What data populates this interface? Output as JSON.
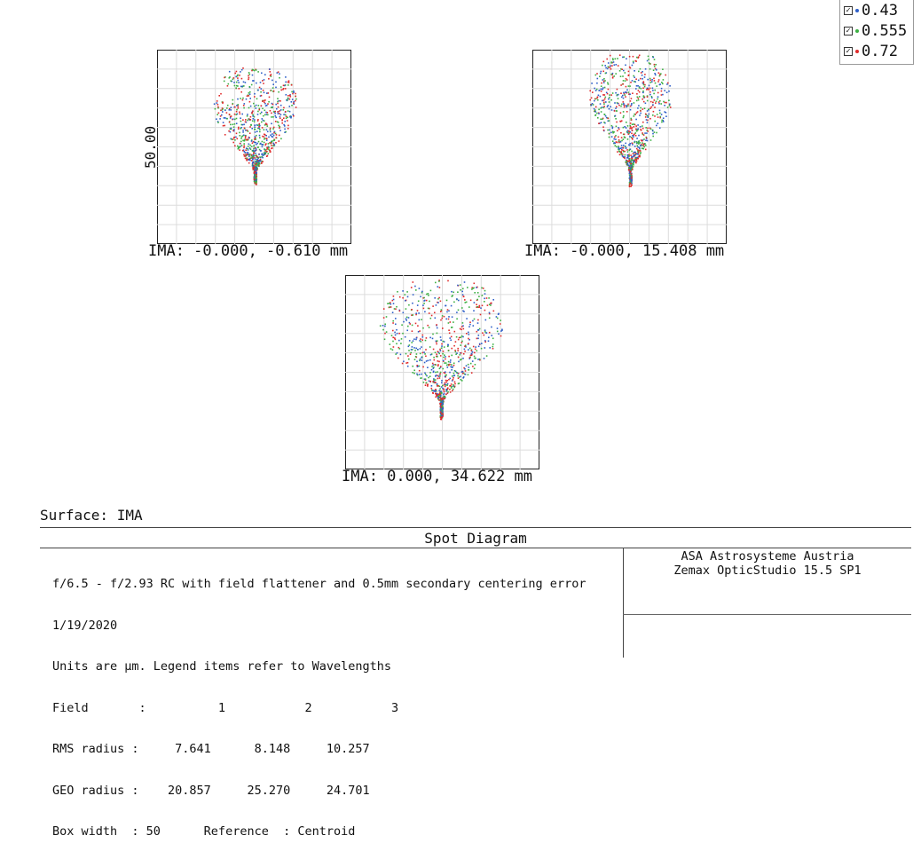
{
  "chart_data": {
    "type": "scatter",
    "title": "Spot Diagram",
    "surface": "Surface: IMA",
    "box_width_label": "50.00",
    "wavelengths": [
      {
        "name": "0.43",
        "color": "#2e5fc9"
      },
      {
        "name": "0.555",
        "color": "#3cb043"
      },
      {
        "name": "0.72",
        "color": "#e02b2b"
      }
    ],
    "fields": [
      {
        "label": "IMA: -0.000, -0.610 mm",
        "rms_radius": 7.641,
        "geo_radius": 20.857
      },
      {
        "label": "IMA: -0.000, 15.408 mm",
        "rms_radius": 8.148,
        "geo_radius": 25.27
      },
      {
        "label": "IMA: 0.000, 34.622 mm",
        "rms_radius": 10.257,
        "geo_radius": 24.701
      }
    ],
    "units": "µm",
    "grid": true,
    "legend_position": "top-right"
  },
  "info": {
    "title": "Spot Diagram",
    "left_lines": [
      "f/6.5 - f/2.93 RC with field flattener and 0.5mm secondary centering error",
      "1/19/2020",
      "Units are µm. Legend items refer to Wavelengths",
      "Field       :          1           2           3",
      "RMS radius :     7.641      8.148     10.257",
      "GEO radius :    20.857     25.270     24.701",
      "Box width  : 50      Reference  : Centroid"
    ],
    "right_lines": [
      "ASA Astrosysteme Austria",
      "Zemax OpticStudio 15.5 SP1"
    ]
  }
}
